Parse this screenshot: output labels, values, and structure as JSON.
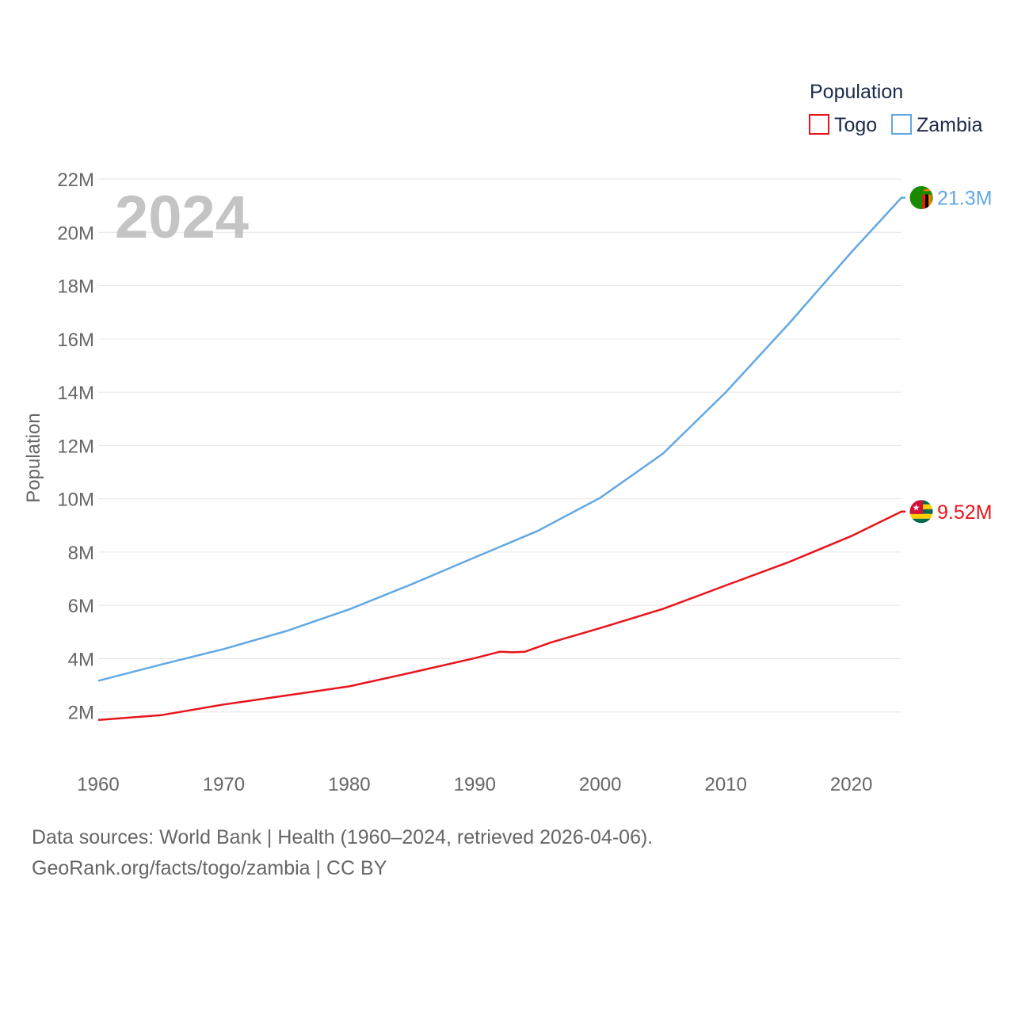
{
  "chart_data": {
    "type": "line",
    "year_label": "2024",
    "ylabel": "Population",
    "legend": {
      "title": "Population",
      "placement": "top-right"
    },
    "x_ticks": [
      1960,
      1970,
      1980,
      1990,
      2000,
      2010,
      2020
    ],
    "y_ticks": [
      {
        "value": 2000000,
        "label": "2M"
      },
      {
        "value": 4000000,
        "label": "4M"
      },
      {
        "value": 6000000,
        "label": "6M"
      },
      {
        "value": 8000000,
        "label": "8M"
      },
      {
        "value": 10000000,
        "label": "10M"
      },
      {
        "value": 12000000,
        "label": "12M"
      },
      {
        "value": 14000000,
        "label": "14M"
      },
      {
        "value": 16000000,
        "label": "16M"
      },
      {
        "value": 18000000,
        "label": "18M"
      },
      {
        "value": 20000000,
        "label": "20M"
      },
      {
        "value": 22000000,
        "label": "22M"
      }
    ],
    "xlim": [
      1960,
      2024
    ],
    "ylim": [
      0,
      22000000
    ],
    "series": [
      {
        "name": "Togo",
        "color": "#e8141b",
        "end_label": "9.52M",
        "flag": "togo-flag",
        "points": [
          [
            1960,
            1700000
          ],
          [
            1965,
            1880000
          ],
          [
            1970,
            2280000
          ],
          [
            1975,
            2620000
          ],
          [
            1980,
            2960000
          ],
          [
            1985,
            3480000
          ],
          [
            1990,
            4020000
          ],
          [
            1992,
            4260000
          ],
          [
            1993,
            4240000
          ],
          [
            1994,
            4260000
          ],
          [
            1996,
            4600000
          ],
          [
            2000,
            5150000
          ],
          [
            2005,
            5870000
          ],
          [
            2010,
            6750000
          ],
          [
            2015,
            7620000
          ],
          [
            2020,
            8600000
          ],
          [
            2024,
            9520000
          ]
        ]
      },
      {
        "name": "Zambia",
        "color": "#63a8e3",
        "end_label": "21.3M",
        "flag": "zambia-flag",
        "points": [
          [
            1960,
            3170000
          ],
          [
            1965,
            3780000
          ],
          [
            1970,
            4360000
          ],
          [
            1975,
            5040000
          ],
          [
            1980,
            5850000
          ],
          [
            1985,
            6800000
          ],
          [
            1990,
            7800000
          ],
          [
            1995,
            8790000
          ],
          [
            2000,
            10040000
          ],
          [
            2005,
            11700000
          ],
          [
            2010,
            14000000
          ],
          [
            2015,
            16560000
          ],
          [
            2020,
            19250000
          ],
          [
            2024,
            21300000
          ]
        ]
      }
    ]
  },
  "footer": {
    "sources": "Data sources: World Bank | Health (1960–2024, retrieved 2026-04-06).",
    "attribution": "GeoRank.org/facts/togo/zambia | CC BY"
  }
}
